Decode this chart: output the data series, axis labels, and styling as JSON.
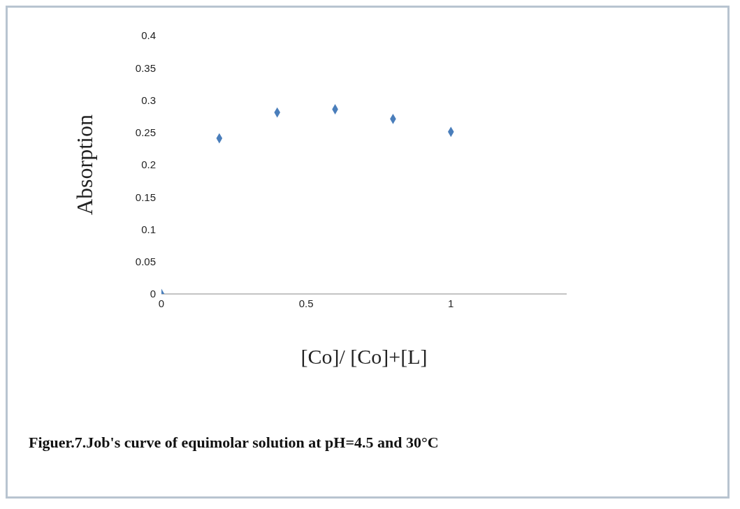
{
  "chart_data": {
    "type": "scatter",
    "xlabel": "[Co]/ [Co]+[L]",
    "ylabel": "Absorption",
    "x": [
      0,
      0.2,
      0.4,
      0.6,
      0.8,
      1
    ],
    "series": [
      {
        "color": "#4a7ebb",
        "values": [
          0,
          0.241,
          0.281,
          0.286,
          0.271,
          0.251
        ]
      }
    ],
    "xlim": [
      0,
      1.4
    ],
    "xticks": [
      0,
      0.5,
      1
    ],
    "ylim": [
      0,
      0.4
    ],
    "yticks": [
      0,
      0.05,
      0.1,
      0.15,
      0.2,
      0.25,
      0.3,
      0.35,
      0.4
    ],
    "marker": "diamond",
    "grid": false,
    "legend": false,
    "annotations": [
      "Figuer.7.Job's curve of equimolar solution at pH=4.5 and 30°C"
    ]
  }
}
